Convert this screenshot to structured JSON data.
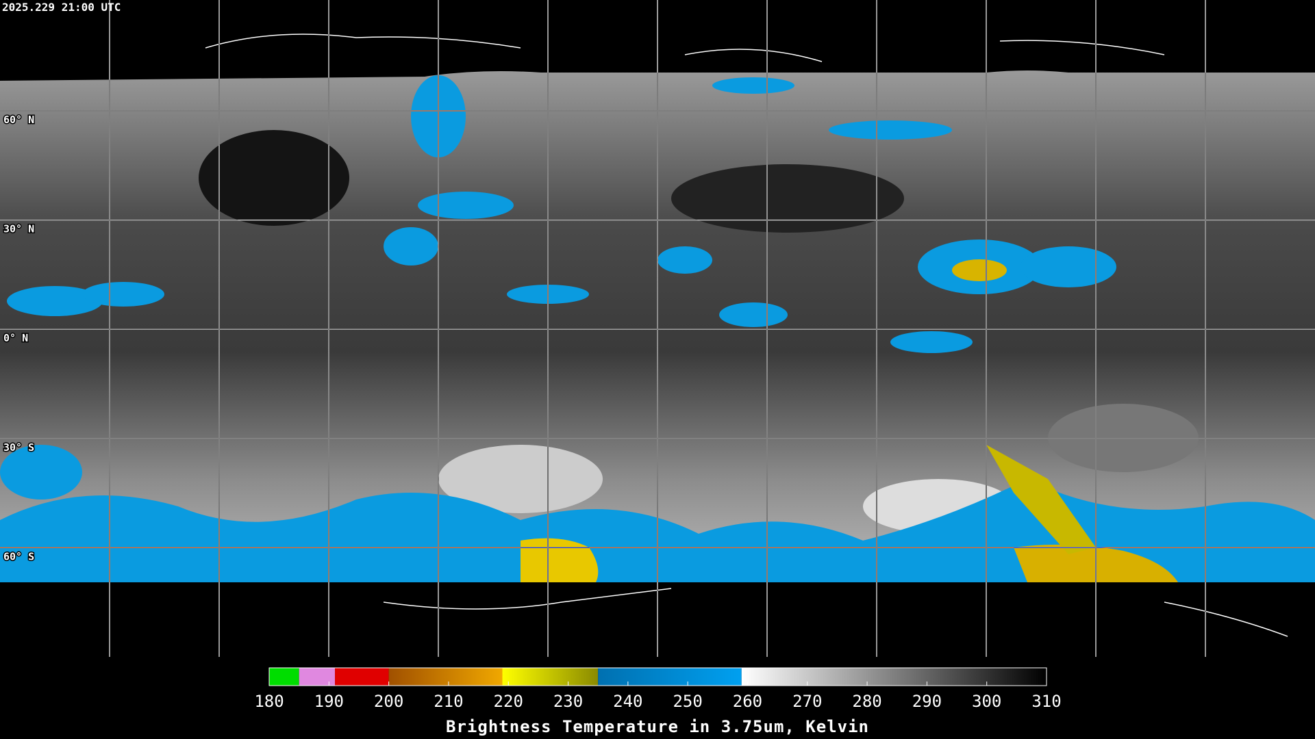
{
  "timestamp": "2025.229 21:00 UTC",
  "map": {
    "latitude_lines": [
      {
        "value": 60,
        "label": "60° N"
      },
      {
        "value": 30,
        "label": "30° N"
      },
      {
        "value": 0,
        "label": "0° N"
      },
      {
        "value": -30,
        "label": "30° S"
      },
      {
        "value": -60,
        "label": "60° S"
      }
    ]
  },
  "colorbar": {
    "title": "Brightness Temperature in 3.75um, Kelvin",
    "range": [
      180,
      310
    ],
    "ticks": [
      180,
      190,
      200,
      210,
      220,
      230,
      240,
      250,
      260,
      270,
      280,
      290,
      300,
      310
    ],
    "segments": [
      {
        "from": 180,
        "to": 185,
        "colors": [
          "#00dd00",
          "#00dd00"
        ]
      },
      {
        "from": 185,
        "to": 191,
        "colors": [
          "#e088e0",
          "#e088e0"
        ]
      },
      {
        "from": 191,
        "to": 200,
        "colors": [
          "#e00000",
          "#e00000"
        ]
      },
      {
        "from": 200,
        "to": 219,
        "colors": [
          "#a05000",
          "#f0a800"
        ]
      },
      {
        "from": 219,
        "to": 235,
        "colors": [
          "#ffff00",
          "#8a8a00"
        ]
      },
      {
        "from": 235,
        "to": 259,
        "colors": [
          "#0070b0",
          "#00a0f0"
        ]
      },
      {
        "from": 259,
        "to": 310,
        "colors": [
          "#ffffff",
          "#000000"
        ]
      }
    ]
  }
}
